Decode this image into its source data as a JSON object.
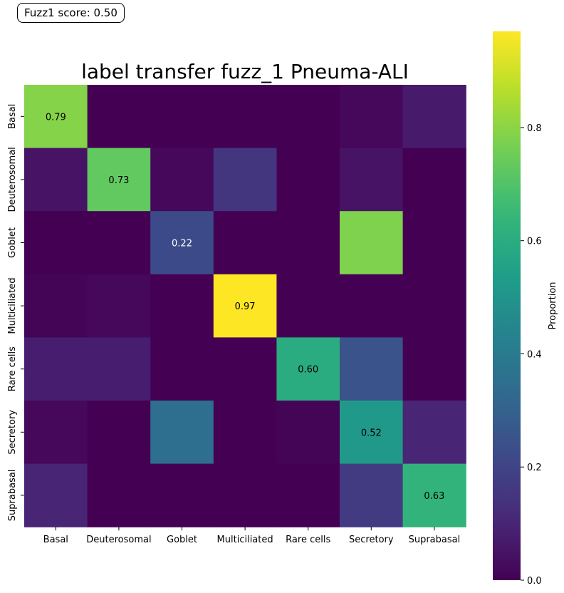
{
  "badge": {
    "text": "Fuzz1 score: 0.50"
  },
  "chart_data": {
    "type": "heatmap",
    "title": "label transfer fuzz_1 Pneuma-ALI",
    "xlabel": "",
    "ylabel": "",
    "x_categories": [
      "Basal",
      "Deuterosomal",
      "Goblet",
      "Multiciliated",
      "Rare cells",
      "Secretory",
      "Suprabasal"
    ],
    "y_categories": [
      "Basal",
      "Deuterosomal",
      "Goblet",
      "Multiciliated",
      "Rare cells",
      "Secretory",
      "Suprabasal"
    ],
    "values": [
      [
        0.79,
        0.0,
        0.0,
        0.0,
        0.0,
        0.02,
        0.07
      ],
      [
        0.05,
        0.73,
        0.02,
        0.15,
        0.0,
        0.05,
        0.0
      ],
      [
        0.0,
        0.0,
        0.22,
        0.0,
        0.0,
        0.78,
        0.0
      ],
      [
        0.01,
        0.02,
        0.0,
        0.97,
        0.0,
        0.0,
        0.0
      ],
      [
        0.08,
        0.08,
        0.0,
        0.0,
        0.6,
        0.25,
        0.0
      ],
      [
        0.02,
        0.0,
        0.35,
        0.0,
        0.01,
        0.52,
        0.1
      ],
      [
        0.1,
        0.0,
        0.0,
        0.0,
        0.0,
        0.17,
        0.63
      ]
    ],
    "annotations": [
      {
        "row": 0,
        "col": 0,
        "text": "0.79"
      },
      {
        "row": 1,
        "col": 1,
        "text": "0.73"
      },
      {
        "row": 2,
        "col": 2,
        "text": "0.22"
      },
      {
        "row": 3,
        "col": 3,
        "text": "0.97"
      },
      {
        "row": 4,
        "col": 4,
        "text": "0.60"
      },
      {
        "row": 5,
        "col": 5,
        "text": "0.52"
      },
      {
        "row": 6,
        "col": 6,
        "text": "0.63"
      }
    ],
    "colormap": "viridis",
    "colorbar": {
      "label": "Proportion",
      "range": [
        0,
        0.97
      ],
      "ticks": [
        0.0,
        0.2,
        0.4,
        0.6,
        0.8
      ],
      "tick_labels": [
        "0.0",
        "0.2",
        "0.4",
        "0.6",
        "0.8"
      ]
    },
    "grid": false
  }
}
